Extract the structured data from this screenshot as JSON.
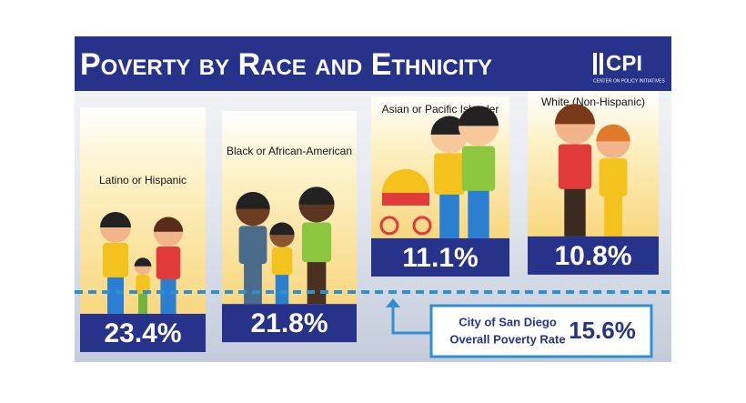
{
  "chart_data": {
    "type": "bar",
    "title": "Poverty by Race and Ethnicity",
    "logo": {
      "text": "CPI",
      "subtitle": "CENTER ON POLICY INITIATIVES"
    },
    "categories": [
      "Latino or Hispanic",
      "Black or African-American",
      "Asian or Pacific Islander",
      "White (Non-Hispanic)"
    ],
    "values": [
      23.4,
      21.8,
      11.1,
      10.8
    ],
    "value_labels": [
      "23.4%",
      "21.8%",
      "11.1%",
      "10.8%"
    ],
    "color": "#27328a",
    "reference": {
      "lines": [
        "City of San Diego",
        "Overall Poverty Rate"
      ],
      "value": 15.6,
      "value_label": "15.6%",
      "color": "#2f8fd0"
    }
  }
}
